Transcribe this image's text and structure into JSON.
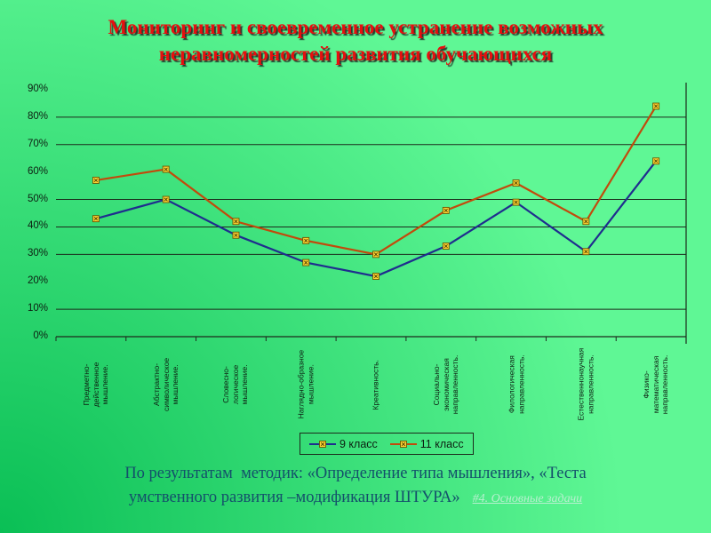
{
  "slide": {
    "background": {
      "dark": "#0abf55",
      "light": "#5ff795"
    },
    "title": {
      "line1": "Мониторинг и своевременное устранение возможных",
      "line2": "неравномерностей развития обучающихся",
      "color": "#e60f0f"
    },
    "caption": {
      "line1": "По результатам  методик: «Определение типа мышления», «Теста",
      "line2": "умственного развития –модификация ШТУРА»",
      "color": "#14506b",
      "link": {
        "text": "#4. Основные задачи",
        "color": "#b7f0cf"
      }
    }
  },
  "chart_data": {
    "type": "line",
    "title": "",
    "xlabel": "",
    "ylabel": "",
    "ylim": [
      0,
      90
    ],
    "y_tick_step": 10,
    "y_tick_suffix": "%",
    "grid": "partial-horizontal",
    "gridlines_pct": [
      10,
      30,
      40,
      50,
      70,
      80
    ],
    "legend_position": "bottom-center",
    "categories": [
      {
        "label": "Предметно-действенное мышление.",
        "lines": [
          "Предметно-",
          "действенное",
          "мышление."
        ]
      },
      {
        "label": "Абстрактно-символическое мышление.",
        "lines": [
          "Абстрактно-",
          "символическое",
          "мышление."
        ]
      },
      {
        "label": "Словесно-логическое мышление.",
        "lines": [
          "Словесно-",
          "логическое",
          "мышление."
        ]
      },
      {
        "label": "Наглядно-образное мышление.",
        "lines": [
          "Наглядно-образное",
          "мышление."
        ]
      },
      {
        "label": "Креативность.",
        "lines": [
          "Креативность."
        ]
      },
      {
        "label": "Социально-экономическая направленность.",
        "lines": [
          "Социально-",
          "экономическая",
          "направленность."
        ]
      },
      {
        "label": "Филологическая направленность.",
        "lines": [
          "Филологическая",
          "направленность."
        ]
      },
      {
        "label": "Естественнонаучная направленность.",
        "lines": [
          "Естественнонаучная",
          "направленность."
        ]
      },
      {
        "label": "Физико-математическая направленность.",
        "lines": [
          "Физико-",
          "математическая",
          "направленность."
        ]
      }
    ],
    "series": [
      {
        "name": "9 класс",
        "color": "#1f2d8e",
        "marker_fill": "#ffd233",
        "values": [
          43,
          50,
          37,
          27,
          22,
          33,
          49,
          31,
          64
        ]
      },
      {
        "name": "11 класс",
        "color": "#c24a0c",
        "marker_fill": "#ffd233",
        "values": [
          57,
          61,
          42,
          35,
          30,
          46,
          56,
          42,
          84
        ]
      }
    ]
  }
}
